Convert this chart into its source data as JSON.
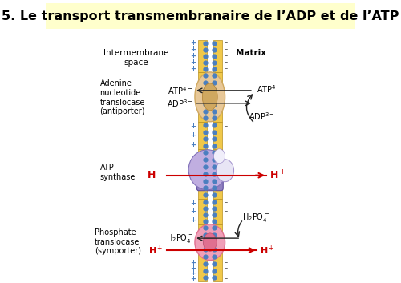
{
  "title": "5. Le transport transmembranaire de l’ADP et de l’ATP",
  "title_bg": "#ffffcc",
  "bg_color": "#ffffff",
  "title_fontsize": 11.5,
  "labels": {
    "intermembrane": "Intermembrane\nspace",
    "matrix": "Matrix",
    "adenine": "Adenine\nnucleotide\ntranslocase\n(antiporter)",
    "atp_synthase": "ATP\nsynthase",
    "phosphate": "Phosphate\ntranslocase\n(symporter)"
  },
  "membrane_color_yellow": "#f0c84a",
  "membrane_color_blue_dots": "#4a7fc0",
  "membrane_color_purple": "#c0aee0",
  "membrane_color_purple_dark": "#9080c0",
  "membrane_color_pink": "#f0a0b8",
  "membrane_color_pink_dark": "#e07090",
  "membrane_color_tan": "#e8c898",
  "membrane_color_tan_dark": "#d0a860",
  "colors": {
    "red_arrow": "#cc0000",
    "black_arrow": "#222222",
    "plus_color": "#4a7fc0",
    "minus_color": "#444444"
  }
}
